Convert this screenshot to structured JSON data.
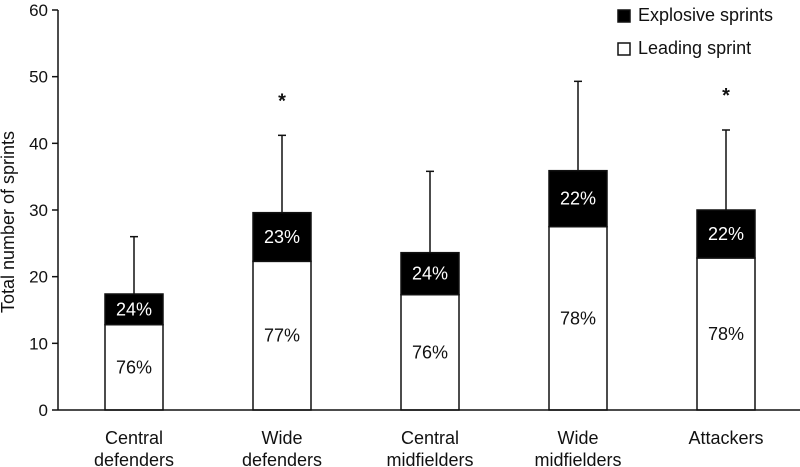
{
  "chart_data": {
    "type": "bar",
    "stacked": true,
    "ylabel": "Total number of sprints",
    "xlabel": "",
    "ylim": [
      0,
      60
    ],
    "yticks": [
      0,
      10,
      20,
      30,
      40,
      50,
      60
    ],
    "categories": [
      [
        "Central",
        "defenders"
      ],
      [
        "Wide",
        "defenders"
      ],
      [
        "Central",
        "midfielders"
      ],
      [
        "Wide",
        "midfielders"
      ],
      [
        "Attackers"
      ]
    ],
    "series": [
      {
        "name": "Leading sprint",
        "color": "#ffffff",
        "values": [
          12.8,
          22.3,
          17.3,
          27.5,
          22.8
        ],
        "labels": [
          "76%",
          "77%",
          "76%",
          "78%",
          "78%"
        ]
      },
      {
        "name": "Explosive sprints",
        "color": "#000000",
        "values": [
          4.6,
          7.3,
          6.3,
          8.4,
          7.2
        ],
        "labels": [
          "24%",
          "23%",
          "24%",
          "22%",
          "22%"
        ]
      }
    ],
    "error_upper": [
      26.0,
      41.2,
      35.8,
      49.3,
      42.0
    ],
    "significance": [
      "",
      "*",
      "",
      "",
      "*"
    ],
    "legend": {
      "position": "top-right",
      "items": [
        {
          "label": "Explosive sprints",
          "color": "#000000"
        },
        {
          "label": "Leading sprint",
          "color": "#ffffff"
        }
      ]
    },
    "grid": false
  }
}
